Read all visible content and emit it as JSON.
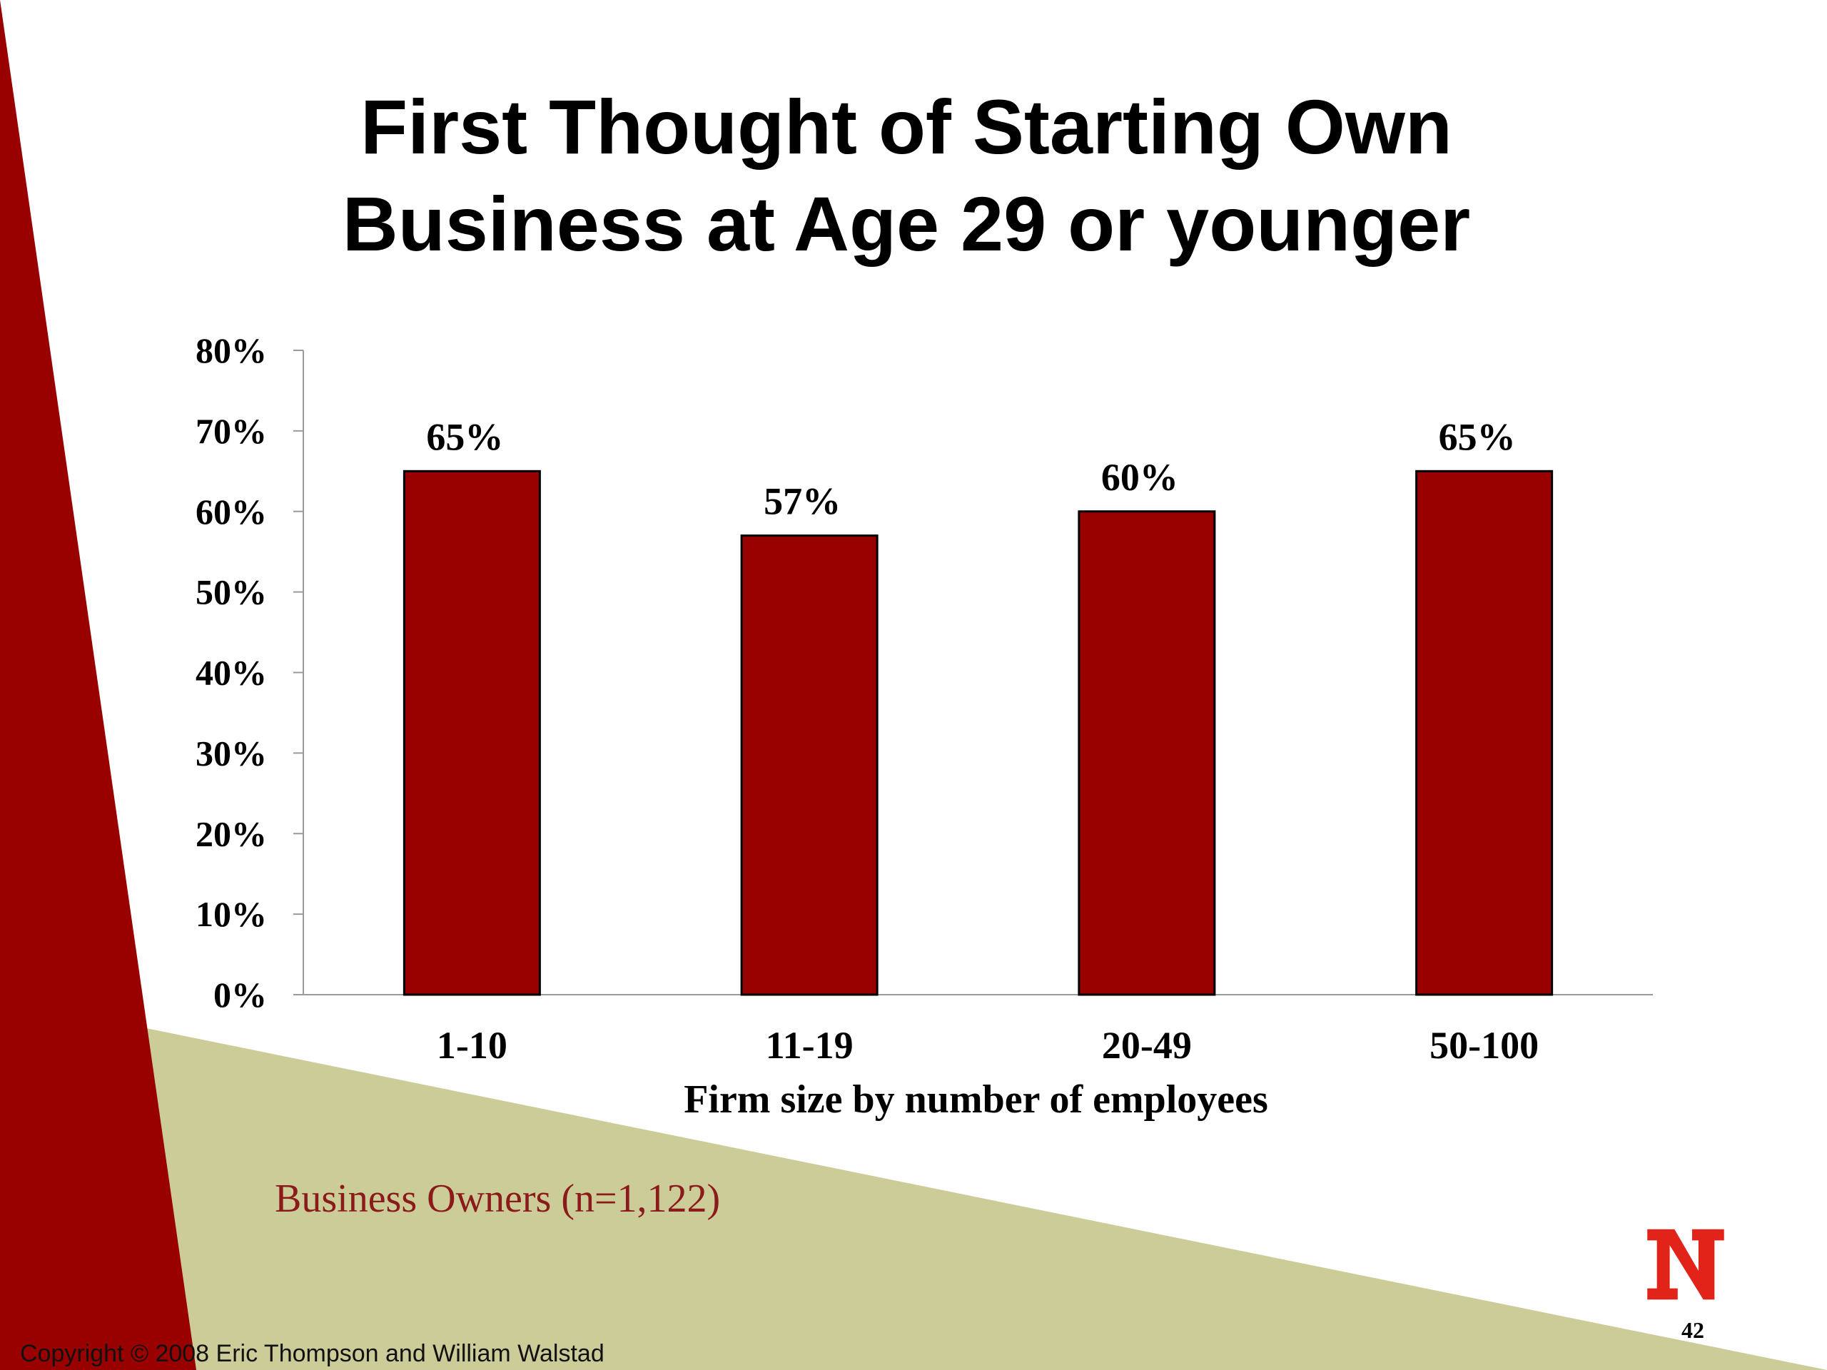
{
  "slide": {
    "title_lines": [
      "First Thought of Starting Own",
      "Business at Age 29 or younger"
    ],
    "note": "Business Owners (n=1,122)",
    "copyright": "Copyright © 2008 Eric Thompson and William Walstad",
    "page_number": "42",
    "colors": {
      "accent_red": "#990000",
      "khaki": "#cccc99",
      "logo_red": "#e2231a"
    },
    "logo_icon": "nebraska-n-logo"
  },
  "chart_data": {
    "type": "bar",
    "title": "First Thought of Starting Own Business at Age 29 or younger",
    "categories": [
      "1-10",
      "11-19",
      "20-49",
      "50-100"
    ],
    "values": [
      65,
      57,
      60,
      65
    ],
    "data_labels": [
      "65%",
      "57%",
      "60%",
      "65%"
    ],
    "xlabel": "Firm size by number of employees",
    "ylabel": "",
    "ylim": [
      0,
      80
    ],
    "yticks": [
      0,
      10,
      20,
      30,
      40,
      50,
      60,
      70,
      80
    ],
    "ytick_labels": [
      "0%",
      "10%",
      "20%",
      "30%",
      "40%",
      "50%",
      "60%",
      "70%",
      "80%"
    ],
    "grid": false,
    "bar_color": "#990000"
  }
}
